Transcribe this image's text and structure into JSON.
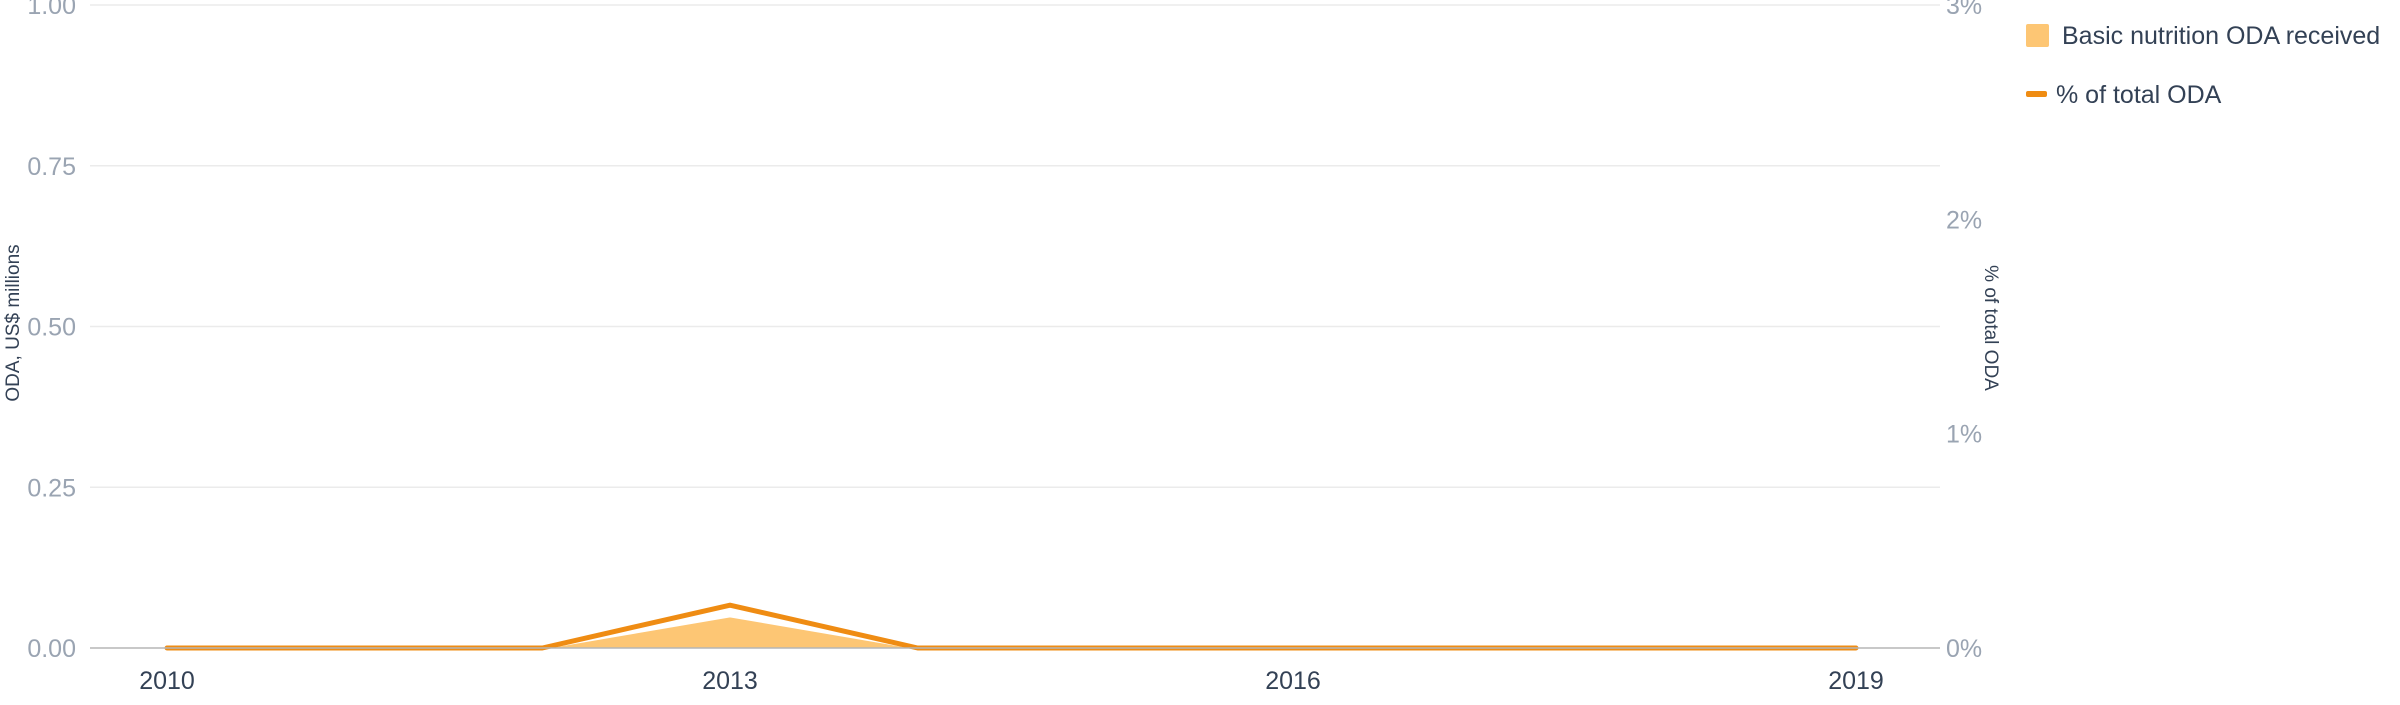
{
  "chart_data": {
    "type": "area",
    "x": [
      2010,
      2011,
      2012,
      2013,
      2014,
      2015,
      2016,
      2017,
      2018,
      2019
    ],
    "x_ticks": [
      "2010",
      "2013",
      "2016",
      "2019"
    ],
    "series": [
      {
        "name": "Basic nutrition ODA received",
        "type": "area",
        "axis": "left",
        "values": [
          0,
          0,
          0,
          0.05,
          0,
          0,
          0,
          0,
          0,
          0
        ],
        "color": "#fdc674"
      },
      {
        "name": "% of total ODA",
        "type": "line",
        "axis": "right",
        "values": [
          0,
          0,
          0,
          0.2,
          0,
          0,
          0,
          0,
          0,
          0
        ],
        "color": "#ef8c13"
      }
    ],
    "y_left": {
      "label": "ODA, US$ millions",
      "ticks": [
        "0.00",
        "0.25",
        "0.50",
        "0.75",
        "1.00"
      ],
      "range": [
        0,
        1
      ]
    },
    "y_right": {
      "label": "% of total ODA",
      "ticks": [
        "0%",
        "1%",
        "2%",
        "3%"
      ],
      "range": [
        0,
        3
      ]
    },
    "grid": true,
    "legend_position": "top-right"
  }
}
